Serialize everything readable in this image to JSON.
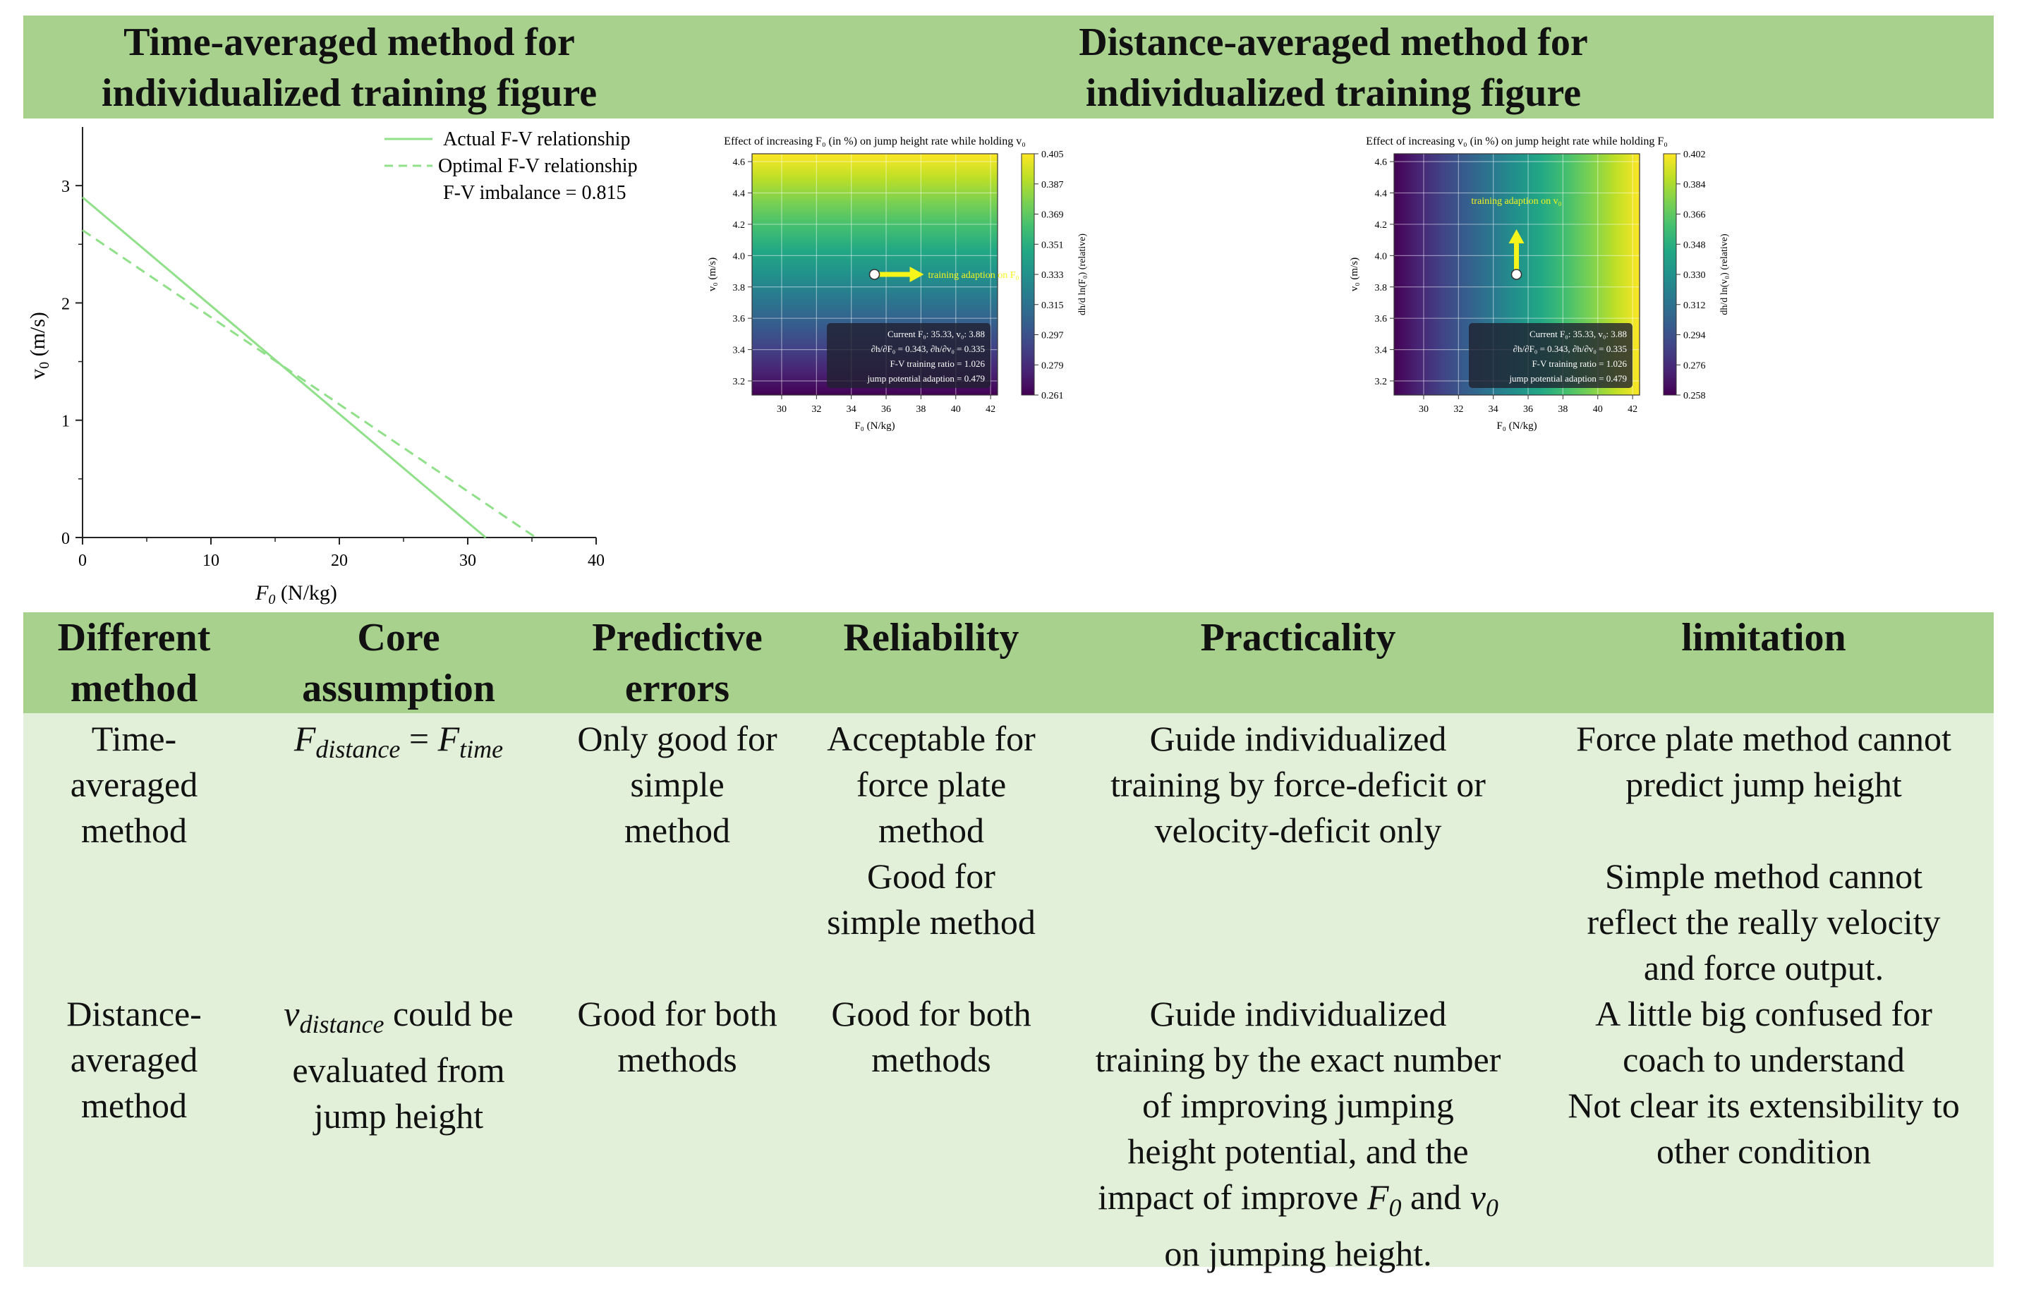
{
  "header": {
    "left_title_line1": "Time-averaged method for",
    "left_title_line2": "individualized training figure",
    "right_title_line1": "Distance-averaged method for",
    "right_title_line2": "individualized training figure"
  },
  "colors": {
    "header_green": "#a9d18e",
    "body_green": "#e2efd9",
    "line_green": "#90e08a",
    "arrow_yellow": "#f5f51c"
  },
  "chart_data": [
    {
      "type": "line",
      "title": "",
      "xlabel_var": "F",
      "xlabel_sub": "0",
      "xlabel_unit": " (N/kg)",
      "ylabel_var": "v",
      "ylabel_sub": "0",
      "ylabel_unit": " (m/s)",
      "xlim": [
        0,
        40
      ],
      "ylim": [
        0,
        3.5
      ],
      "x_ticks": [
        "0",
        "10",
        "20",
        "30",
        "40"
      ],
      "y_ticks": [
        "0",
        "1",
        "2",
        "3"
      ],
      "series": [
        {
          "name": "Actual F-V relationship",
          "style": "solid",
          "x": [
            0,
            31.4
          ],
          "y": [
            2.9,
            0
          ]
        },
        {
          "name": "Optimal F-V relationship",
          "style": "dashed",
          "x": [
            0,
            35.3
          ],
          "y": [
            2.62,
            0
          ]
        }
      ],
      "annotation": "F-V imbalance = 0.815"
    },
    {
      "type": "heatmap",
      "title": "Effect of increasing F₀ (in %) on jump height rate while holding v₀",
      "xlabel": "F₀ (N/kg)",
      "ylabel": "v₀ (m/s)",
      "colorbar_label": "dh/d ln(F₀) (relative)",
      "gradient_axis": "y",
      "xlim": [
        28.3,
        42.4
      ],
      "ylim": [
        3.11,
        4.65
      ],
      "x_ticks": [
        "30",
        "32",
        "34",
        "36",
        "38",
        "40",
        "42"
      ],
      "y_ticks": [
        "3.2",
        "3.4",
        "3.6",
        "3.8",
        "4.0",
        "4.2",
        "4.4",
        "4.6"
      ],
      "colorbar_ticks": [
        "0.405",
        "0.387",
        "0.369",
        "0.351",
        "0.333",
        "0.315",
        "0.297",
        "0.279",
        "0.261"
      ],
      "colorbar_range": [
        0.261,
        0.405
      ],
      "current_point": {
        "F0": 35.33,
        "v0": 3.88
      },
      "arrow_direction": "right",
      "arrow_label": "training adaption on F₀",
      "info_box": [
        "Current F₀: 35.33, v₀: 3.88",
        "∂h/∂F₀ = 0.343, ∂h/∂v₀ = 0.335",
        "F-V training ratio = 1.026",
        "jump potential adaption = 0.479"
      ]
    },
    {
      "type": "heatmap",
      "title": "Effect of increasing v₀ (in %) on jump height rate while holding F₀",
      "xlabel": "F₀ (N/kg)",
      "ylabel": "v₀ (m/s)",
      "colorbar_label": "dh/d ln(v₀) (relative)",
      "gradient_axis": "x",
      "xlim": [
        28.3,
        42.4
      ],
      "ylim": [
        3.11,
        4.65
      ],
      "x_ticks": [
        "30",
        "32",
        "34",
        "36",
        "38",
        "40",
        "42"
      ],
      "y_ticks": [
        "3.2",
        "3.4",
        "3.6",
        "3.8",
        "4.0",
        "4.2",
        "4.4",
        "4.6"
      ],
      "colorbar_ticks": [
        "0.402",
        "0.384",
        "0.366",
        "0.348",
        "0.330",
        "0.312",
        "0.294",
        "0.276",
        "0.258"
      ],
      "colorbar_range": [
        0.258,
        0.402
      ],
      "current_point": {
        "F0": 35.33,
        "v0": 3.88
      },
      "arrow_direction": "up",
      "arrow_label": "training adaption on v₀",
      "info_box": [
        "Current F₀: 35.33, v₀: 3.88",
        "∂h/∂F₀ = 0.343, ∂h/∂v₀ = 0.335",
        "F-V training ratio = 1.026",
        "jump potential adaption = 0.479"
      ]
    }
  ],
  "table": {
    "headers": {
      "method_l1": "Different",
      "method_l2": "method",
      "assumption_l1": "Core",
      "assumption_l2": "assumption",
      "errors_l1": "Predictive",
      "errors_l2": "errors",
      "reliability": "Reliability",
      "practicality": "Practicality",
      "limitation": "limitation"
    },
    "row1": {
      "method": [
        "Time-",
        "averaged",
        "method"
      ],
      "assumption_lhs": "F",
      "assumption_lhs_sub": "distance",
      "assumption_eq": " = ",
      "assumption_rhs": "F",
      "assumption_rhs_sub": "time",
      "errors": [
        "Only good for",
        "simple",
        "method"
      ],
      "reliability": [
        "Acceptable for",
        "force plate",
        "method",
        "Good for",
        "simple method"
      ],
      "practicality": [
        "Guide individualized",
        "training by force-deficit or",
        "velocity-deficit only"
      ],
      "limitation_a": [
        "Force plate method cannot",
        "predict jump height"
      ],
      "limitation_b": [
        "Simple method cannot",
        "reflect the really velocity",
        "and force output."
      ]
    },
    "row2": {
      "method": [
        "Distance-",
        "averaged",
        "method"
      ],
      "assumption_var": "v",
      "assumption_sub": "distance",
      "assumption_l1_rest": " could be",
      "assumption_l2": "evaluated from",
      "assumption_l3": "jump height",
      "errors": [
        "Good for both",
        "methods"
      ],
      "reliability": [
        "Good for both",
        "methods"
      ],
      "practicality": [
        "Guide individualized",
        "training by the exact number",
        "of improving jumping",
        "height potential, and the"
      ],
      "practicality_l5_a": "impact of improve ",
      "practicality_l5_f": "F",
      "practicality_l5_fsub": "0",
      "practicality_l5_and": " and ",
      "practicality_l5_v": "v",
      "practicality_l5_vsub": "0",
      "practicality_l6": "on jumping height.",
      "limitation": [
        "A little big confused for",
        "coach to understand",
        "Not clear its extensibility to",
        "other condition"
      ]
    }
  }
}
